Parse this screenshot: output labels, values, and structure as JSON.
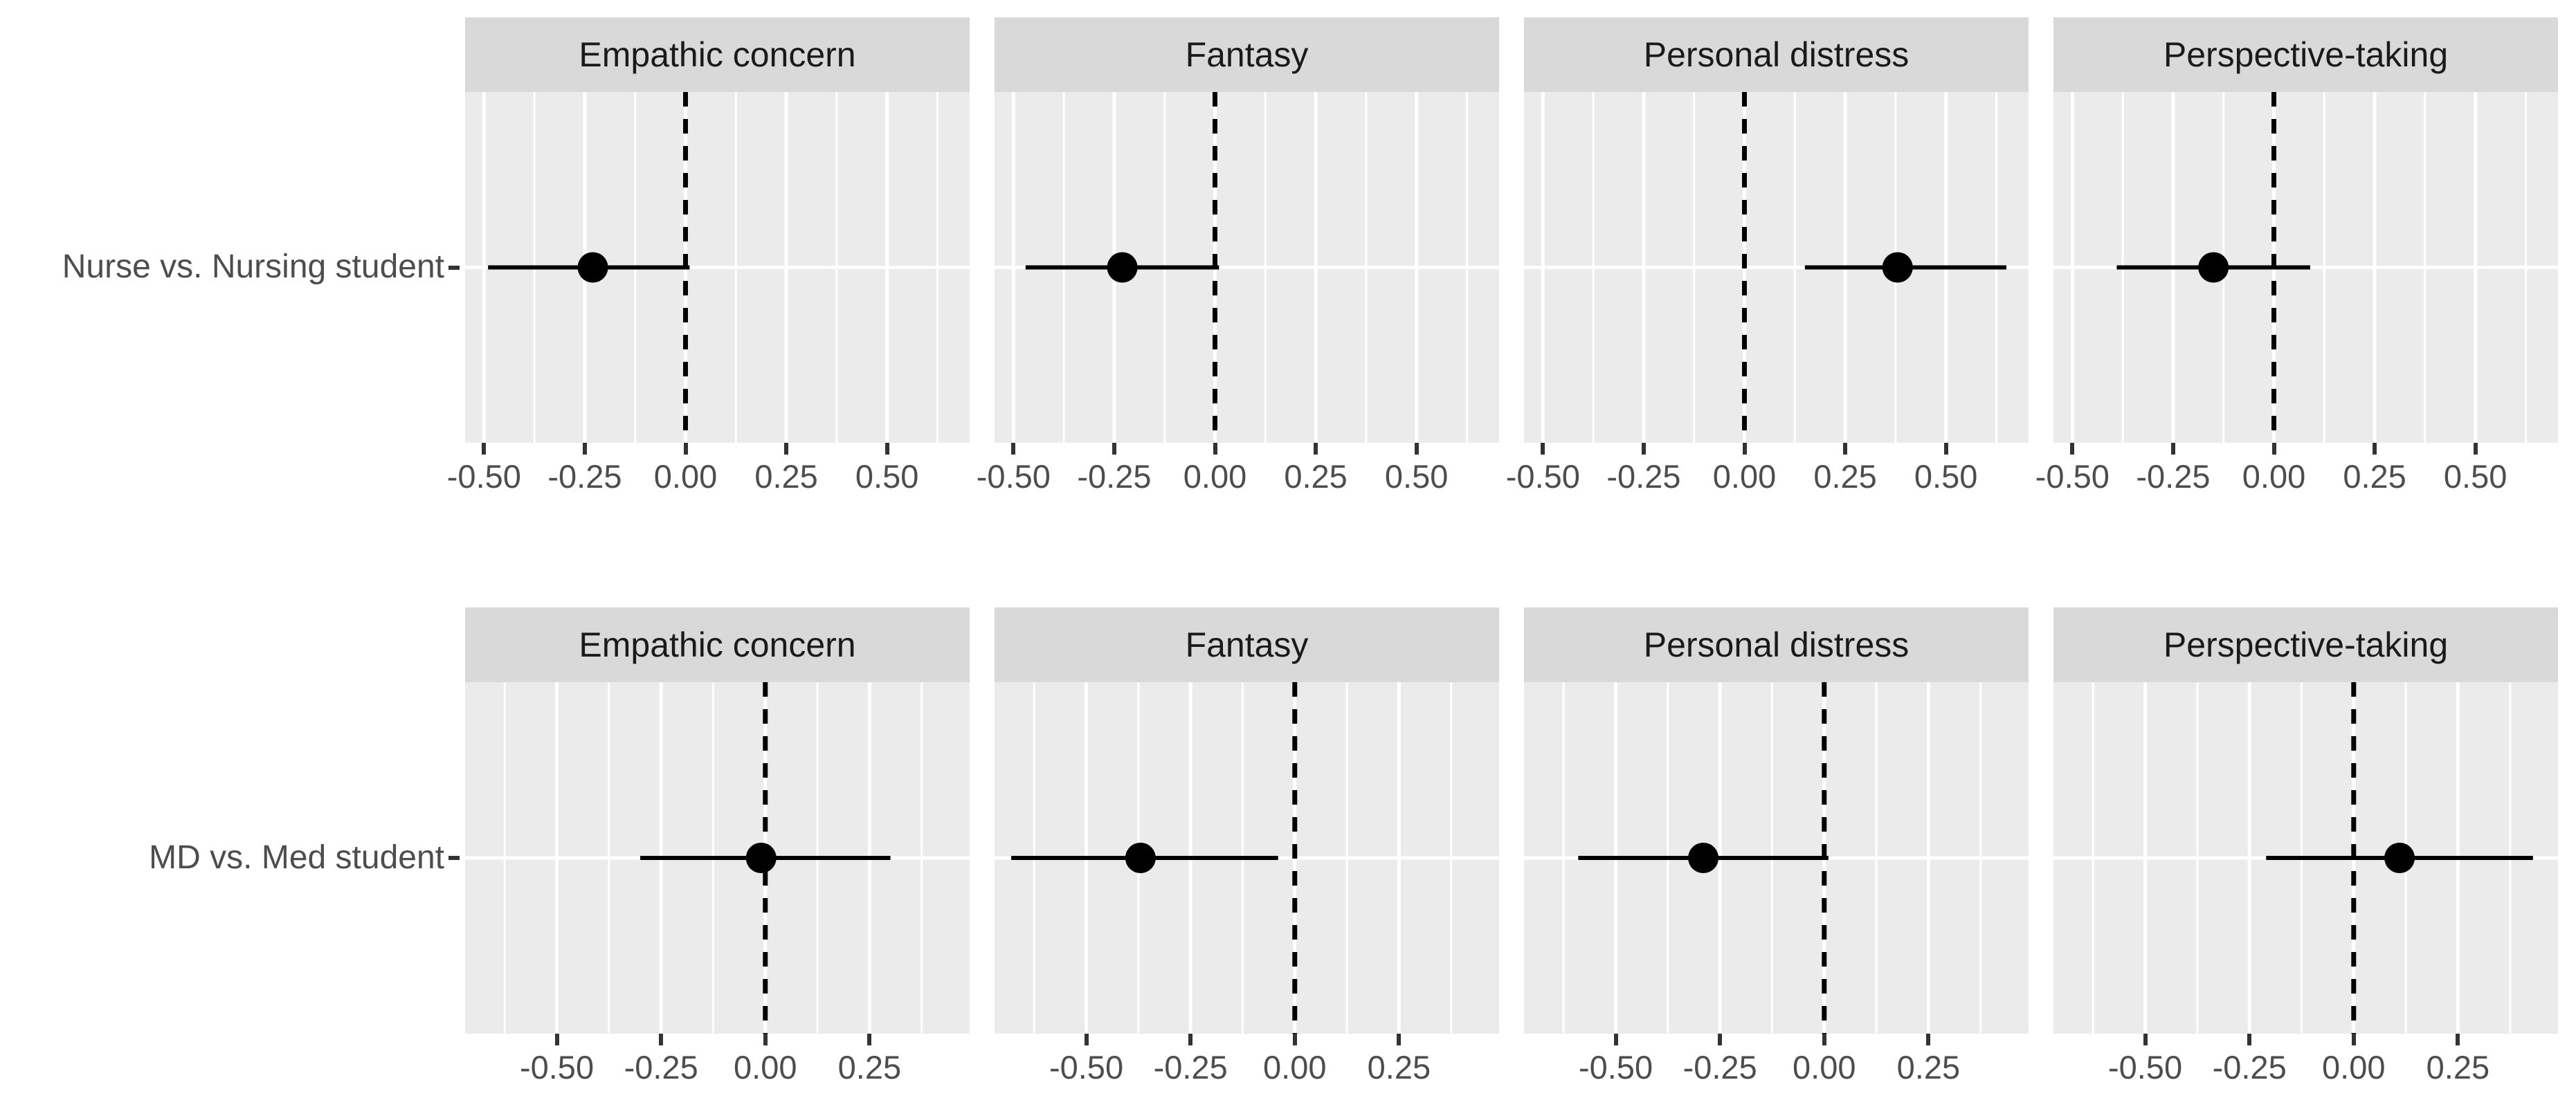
{
  "chart_data": {
    "type": "scatter",
    "subtype": "forest-plot-faceted",
    "title": "",
    "xlabel": "",
    "ylabel": "",
    "grid": "on",
    "legend": "none",
    "reference_line": {
      "x": 0,
      "style": "dashed",
      "color": "#000000"
    },
    "facets": [
      "Empathic concern",
      "Fantasy",
      "Personal distress",
      "Perspective-taking"
    ],
    "rows": [
      {
        "group_label": "Nurse vs. Nursing student",
        "xlim": [
          -0.547,
          0.705
        ],
        "x_ticks": [
          -0.5,
          -0.25,
          0,
          0.25,
          0.5
        ],
        "x_tick_labels": [
          "-0.50",
          "-0.25",
          "0.00",
          "0.25",
          "0.50"
        ],
        "estimates": [
          {
            "facet": "Empathic concern",
            "estimate": -0.23,
            "ci_lower": -0.49,
            "ci_upper": 0.01
          },
          {
            "facet": "Fantasy",
            "estimate": -0.23,
            "ci_lower": -0.47,
            "ci_upper": 0.01
          },
          {
            "facet": "Personal distress",
            "estimate": 0.38,
            "ci_lower": 0.15,
            "ci_upper": 0.65
          },
          {
            "facet": "Perspective-taking",
            "estimate": -0.15,
            "ci_lower": -0.39,
            "ci_upper": 0.09
          }
        ]
      },
      {
        "group_label": "MD vs. Med student",
        "xlim": [
          -0.72,
          0.49
        ],
        "x_ticks": [
          -0.5,
          -0.25,
          0,
          0.25
        ],
        "x_tick_labels": [
          "-0.50",
          "-0.25",
          "0.00",
          "0.25"
        ],
        "estimates": [
          {
            "facet": "Empathic concern",
            "estimate": -0.01,
            "ci_lower": -0.3,
            "ci_upper": 0.3
          },
          {
            "facet": "Fantasy",
            "estimate": -0.37,
            "ci_lower": -0.68,
            "ci_upper": -0.04
          },
          {
            "facet": "Personal distress",
            "estimate": -0.29,
            "ci_lower": -0.59,
            "ci_upper": 0.01
          },
          {
            "facet": "Perspective-taking",
            "estimate": 0.11,
            "ci_lower": -0.21,
            "ci_upper": 0.43
          }
        ]
      }
    ],
    "colors": {
      "panel_background": "#EBEBEB",
      "strip_background": "#D9D9D9",
      "gridline": "#FFFFFF",
      "axis_text": "#4D4D4D",
      "strip_text": "#1A1A1A",
      "tick_mark": "#333333",
      "data": "#000000"
    }
  }
}
